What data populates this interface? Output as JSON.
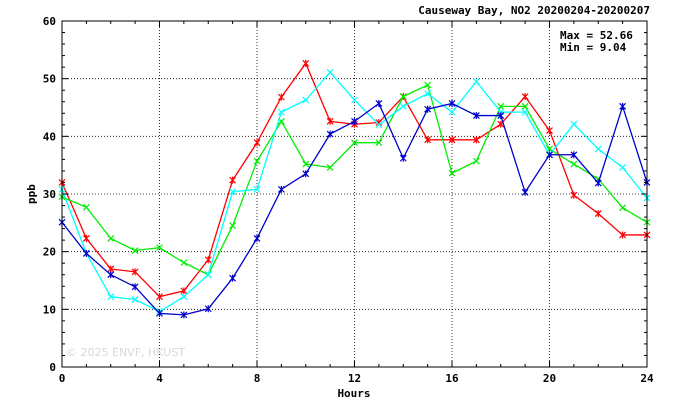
{
  "chart_data": {
    "type": "line",
    "title": "Causeway Bay, NO2 20200204-20200207",
    "xlabel": "Hours",
    "ylabel": "ppb",
    "xlim": [
      0,
      24
    ],
    "ylim": [
      0,
      60
    ],
    "xticks": [
      0,
      4,
      8,
      12,
      16,
      20,
      24
    ],
    "yticks": [
      0,
      10,
      20,
      30,
      40,
      50,
      60
    ],
    "grid": true,
    "stats": {
      "max_text": "Max = 52.66",
      "min_text": "Min =  9.04"
    },
    "watermark": "© 2025  ENVF, HKUST",
    "x": [
      0,
      1,
      2,
      3,
      4,
      5,
      6,
      7,
      8,
      9,
      10,
      11,
      12,
      13,
      14,
      15,
      16,
      17,
      18,
      19,
      20,
      21,
      22,
      23,
      24
    ],
    "series": [
      {
        "color": "#ff0000",
        "marker": "asterisk",
        "values": [
          32.0,
          22.3,
          17.0,
          16.5,
          12.2,
          13.2,
          18.6,
          32.4,
          38.9,
          46.8,
          52.66,
          42.6,
          42.1,
          42.4,
          46.9,
          39.4,
          39.4,
          39.4,
          42.1,
          46.9,
          41.0,
          29.8,
          26.6,
          22.9,
          22.9
        ]
      },
      {
        "color": "#00ee00",
        "marker": "x",
        "values": [
          29.5,
          27.7,
          22.3,
          20.2,
          20.7,
          18.1,
          16.0,
          24.5,
          35.7,
          42.6,
          35.2,
          34.6,
          38.9,
          38.9,
          46.9,
          48.9,
          33.6,
          35.7,
          45.2,
          45.2,
          37.8,
          35.2,
          32.6,
          27.6,
          25.1
        ]
      },
      {
        "color": "#00ffff",
        "marker": "x",
        "values": [
          30.8,
          19.7,
          12.2,
          11.7,
          9.6,
          12.2,
          16.0,
          30.4,
          30.8,
          44.2,
          46.3,
          51.1,
          46.3,
          42.0,
          45.2,
          47.4,
          44.2,
          49.5,
          44.2,
          44.2,
          36.8,
          42.1,
          37.8,
          34.6,
          29.3
        ]
      },
      {
        "color": "#0000cc",
        "marker": "asterisk",
        "values": [
          25.1,
          19.7,
          16.0,
          13.9,
          9.3,
          9.04,
          10.1,
          15.4,
          22.3,
          30.8,
          33.5,
          40.4,
          42.6,
          45.7,
          36.2,
          44.7,
          45.7,
          43.6,
          43.6,
          30.3,
          36.8,
          36.8,
          31.9,
          45.2,
          32.0
        ]
      }
    ]
  }
}
